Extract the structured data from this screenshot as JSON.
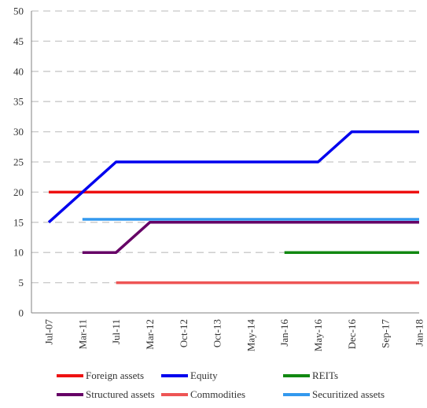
{
  "chart_data": {
    "type": "line",
    "title": "",
    "xlabel": "",
    "ylabel": "",
    "ylim": [
      0,
      50
    ],
    "yticks": [
      0,
      5,
      10,
      15,
      20,
      25,
      30,
      35,
      40,
      45,
      50
    ],
    "grid": true,
    "legend_position": "bottom",
    "categories": [
      "Jul-07",
      "Mar-11",
      "Jul-11",
      "Mar-12",
      "Oct-12",
      "Oct-13",
      "May-14",
      "Jan-16",
      "May-16",
      "Dec-16",
      "Sep-17",
      "Jan-18"
    ],
    "series": [
      {
        "name": "Foreign assets",
        "color": "#ee1111",
        "values": [
          20,
          20,
          20,
          20,
          20,
          20,
          20,
          20,
          20,
          20,
          20,
          20
        ]
      },
      {
        "name": "Equity",
        "color": "#0000ee",
        "values": [
          15,
          20,
          25,
          25,
          25,
          25,
          25,
          25,
          25,
          30,
          30,
          30
        ]
      },
      {
        "name": "REITs",
        "color": "#118811",
        "values": [
          null,
          null,
          null,
          null,
          null,
          null,
          null,
          10,
          10,
          10,
          10,
          10
        ]
      },
      {
        "name": "Structured assets",
        "color": "#660066",
        "values": [
          null,
          10,
          10,
          15,
          15,
          15,
          15,
          15,
          15,
          15,
          15,
          15
        ]
      },
      {
        "name": "Commodities",
        "color": "#ee5555",
        "values": [
          null,
          null,
          5,
          5,
          5,
          5,
          5,
          5,
          5,
          5,
          5,
          5
        ]
      },
      {
        "name": "Securitized assets",
        "color": "#3399ee",
        "values": [
          null,
          15.5,
          15.5,
          15.5,
          15.5,
          15.5,
          15.5,
          15.5,
          15.5,
          15.5,
          15.5,
          15.5
        ]
      }
    ],
    "draw_order": [
      4,
      3,
      2,
      5,
      0,
      1
    ]
  }
}
